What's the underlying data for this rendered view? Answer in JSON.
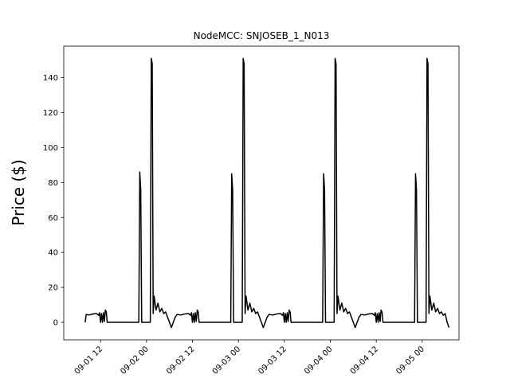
{
  "chart_data": {
    "type": "line",
    "title": "NodeMCC: SNJOSEB_1_N013",
    "xlabel": "",
    "ylabel": "Price ($)",
    "ylim": [
      -10,
      158
    ],
    "yticks": [
      0,
      20,
      40,
      60,
      80,
      100,
      120,
      140
    ],
    "xlim": [
      "2022-09-01 02:24",
      "2022-09-05 09:36"
    ],
    "xticks": [
      {
        "value": "2022-09-01 12:00",
        "label": "09-01 12"
      },
      {
        "value": "2022-09-02 00:00",
        "label": "09-02 00"
      },
      {
        "value": "2022-09-02 12:00",
        "label": "09-02 12"
      },
      {
        "value": "2022-09-03 00:00",
        "label": "09-03 00"
      },
      {
        "value": "2022-09-03 12:00",
        "label": "09-03 12"
      },
      {
        "value": "2022-09-04 00:00",
        "label": "09-04 00"
      },
      {
        "value": "2022-09-04 12:00",
        "label": "09-04 12"
      },
      {
        "value": "2022-09-05 00:00",
        "label": "09-05 00"
      }
    ],
    "grid": false,
    "line_color": "#000000",
    "series": [
      {
        "name": "",
        "points": [
          [
            "2022-09-01 08:00",
            0
          ],
          [
            "2022-09-01 08:15",
            4.5
          ],
          [
            "2022-09-01 09:00",
            4.2
          ],
          [
            "2022-09-01 10:00",
            4.8
          ],
          [
            "2022-09-01 11:00",
            5.0
          ],
          [
            "2022-09-01 11:30",
            4.0
          ],
          [
            "2022-09-01 11:45",
            5.5
          ],
          [
            "2022-09-01 12:00",
            0
          ],
          [
            "2022-09-01 12:15",
            5.0
          ],
          [
            "2022-09-01 12:30",
            0
          ],
          [
            "2022-09-01 12:45",
            5.5
          ],
          [
            "2022-09-01 13:00",
            0.5
          ],
          [
            "2022-09-01 13:15",
            7.0
          ],
          [
            "2022-09-01 13:30",
            6.0
          ],
          [
            "2022-09-01 13:45",
            0
          ],
          [
            "2022-09-01 22:00",
            0
          ],
          [
            "2022-09-01 22:15",
            86
          ],
          [
            "2022-09-01 22:30",
            76
          ],
          [
            "2022-09-01 22:45",
            0
          ],
          [
            "2022-09-02 01:00",
            0
          ],
          [
            "2022-09-02 01:15",
            151
          ],
          [
            "2022-09-02 01:30",
            148
          ],
          [
            "2022-09-02 01:45",
            5
          ],
          [
            "2022-09-02 02:00",
            15
          ],
          [
            "2022-09-02 02:30",
            7
          ],
          [
            "2022-09-02 03:00",
            11
          ],
          [
            "2022-09-02 03:30",
            6
          ],
          [
            "2022-09-02 04:00",
            8
          ],
          [
            "2022-09-02 04:30",
            5
          ],
          [
            "2022-09-02 05:00",
            6
          ],
          [
            "2022-09-02 05:30",
            3
          ],
          [
            "2022-09-02 06:00",
            0
          ],
          [
            "2022-09-02 06:30",
            -3
          ],
          [
            "2022-09-02 07:00",
            0
          ],
          [
            "2022-09-02 07:30",
            3
          ],
          [
            "2022-09-02 08:00",
            4.5
          ],
          [
            "2022-09-02 09:00",
            4.2
          ],
          [
            "2022-09-02 10:00",
            4.8
          ],
          [
            "2022-09-02 11:00",
            5.0
          ],
          [
            "2022-09-02 11:30",
            4.0
          ],
          [
            "2022-09-02 11:45",
            5.5
          ],
          [
            "2022-09-02 12:00",
            0
          ],
          [
            "2022-09-02 12:15",
            5.0
          ],
          [
            "2022-09-02 12:30",
            0
          ],
          [
            "2022-09-02 12:45",
            5.5
          ],
          [
            "2022-09-02 13:00",
            0.5
          ],
          [
            "2022-09-02 13:15",
            7.0
          ],
          [
            "2022-09-02 13:30",
            6.0
          ],
          [
            "2022-09-02 13:45",
            0
          ],
          [
            "2022-09-02 22:00",
            0
          ],
          [
            "2022-09-02 22:15",
            85
          ],
          [
            "2022-09-02 22:30",
            76
          ],
          [
            "2022-09-02 22:45",
            0
          ],
          [
            "2022-09-03 01:00",
            0
          ],
          [
            "2022-09-03 01:15",
            151
          ],
          [
            "2022-09-03 01:30",
            148
          ],
          [
            "2022-09-03 01:45",
            5
          ],
          [
            "2022-09-03 02:00",
            15
          ],
          [
            "2022-09-03 02:30",
            7
          ],
          [
            "2022-09-03 03:00",
            11
          ],
          [
            "2022-09-03 03:30",
            6
          ],
          [
            "2022-09-03 04:00",
            8
          ],
          [
            "2022-09-03 04:30",
            5
          ],
          [
            "2022-09-03 05:00",
            6
          ],
          [
            "2022-09-03 05:30",
            3
          ],
          [
            "2022-09-03 06:00",
            0
          ],
          [
            "2022-09-03 06:30",
            -3
          ],
          [
            "2022-09-03 07:00",
            0
          ],
          [
            "2022-09-03 07:30",
            3
          ],
          [
            "2022-09-03 08:00",
            4.5
          ],
          [
            "2022-09-03 09:00",
            4.2
          ],
          [
            "2022-09-03 10:00",
            4.8
          ],
          [
            "2022-09-03 11:00",
            5.0
          ],
          [
            "2022-09-03 11:30",
            4.0
          ],
          [
            "2022-09-03 11:45",
            5.5
          ],
          [
            "2022-09-03 12:00",
            0
          ],
          [
            "2022-09-03 12:15",
            5.0
          ],
          [
            "2022-09-03 12:30",
            0
          ],
          [
            "2022-09-03 12:45",
            5.5
          ],
          [
            "2022-09-03 13:00",
            0.5
          ],
          [
            "2022-09-03 13:15",
            7.0
          ],
          [
            "2022-09-03 13:30",
            6.0
          ],
          [
            "2022-09-03 13:45",
            0
          ],
          [
            "2022-09-03 22:00",
            0
          ],
          [
            "2022-09-03 22:15",
            85
          ],
          [
            "2022-09-03 22:30",
            76
          ],
          [
            "2022-09-03 22:45",
            0
          ],
          [
            "2022-09-04 01:00",
            0
          ],
          [
            "2022-09-04 01:15",
            151
          ],
          [
            "2022-09-04 01:30",
            148
          ],
          [
            "2022-09-04 01:45",
            5
          ],
          [
            "2022-09-04 02:00",
            15
          ],
          [
            "2022-09-04 02:30",
            7
          ],
          [
            "2022-09-04 03:00",
            11
          ],
          [
            "2022-09-04 03:30",
            6
          ],
          [
            "2022-09-04 04:00",
            8
          ],
          [
            "2022-09-04 04:30",
            5
          ],
          [
            "2022-09-04 05:00",
            6
          ],
          [
            "2022-09-04 05:30",
            3
          ],
          [
            "2022-09-04 06:00",
            0
          ],
          [
            "2022-09-04 06:30",
            -3
          ],
          [
            "2022-09-04 07:00",
            0
          ],
          [
            "2022-09-04 07:30",
            3
          ],
          [
            "2022-09-04 08:00",
            4.5
          ],
          [
            "2022-09-04 09:00",
            4.2
          ],
          [
            "2022-09-04 10:00",
            4.8
          ],
          [
            "2022-09-04 11:00",
            5.0
          ],
          [
            "2022-09-04 11:30",
            4.0
          ],
          [
            "2022-09-04 11:45",
            5.5
          ],
          [
            "2022-09-04 12:00",
            0
          ],
          [
            "2022-09-04 12:15",
            5.0
          ],
          [
            "2022-09-04 12:30",
            0
          ],
          [
            "2022-09-04 12:45",
            5.5
          ],
          [
            "2022-09-04 13:00",
            0.5
          ],
          [
            "2022-09-04 13:15",
            7.0
          ],
          [
            "2022-09-04 13:30",
            6.0
          ],
          [
            "2022-09-04 13:45",
            0
          ],
          [
            "2022-09-04 22:00",
            0
          ],
          [
            "2022-09-04 22:15",
            85
          ],
          [
            "2022-09-04 22:30",
            76
          ],
          [
            "2022-09-04 22:45",
            0
          ],
          [
            "2022-09-05 01:00",
            0
          ],
          [
            "2022-09-05 01:15",
            151
          ],
          [
            "2022-09-05 01:30",
            148
          ],
          [
            "2022-09-05 01:45",
            5
          ],
          [
            "2022-09-05 02:00",
            15
          ],
          [
            "2022-09-05 02:30",
            7
          ],
          [
            "2022-09-05 03:00",
            11
          ],
          [
            "2022-09-05 03:30",
            6
          ],
          [
            "2022-09-05 04:00",
            8
          ],
          [
            "2022-09-05 04:30",
            5
          ],
          [
            "2022-09-05 05:00",
            6
          ],
          [
            "2022-09-05 05:30",
            4
          ],
          [
            "2022-09-05 06:00",
            5
          ],
          [
            "2022-09-05 06:30",
            0
          ],
          [
            "2022-09-05 07:00",
            -3
          ]
        ]
      }
    ]
  }
}
